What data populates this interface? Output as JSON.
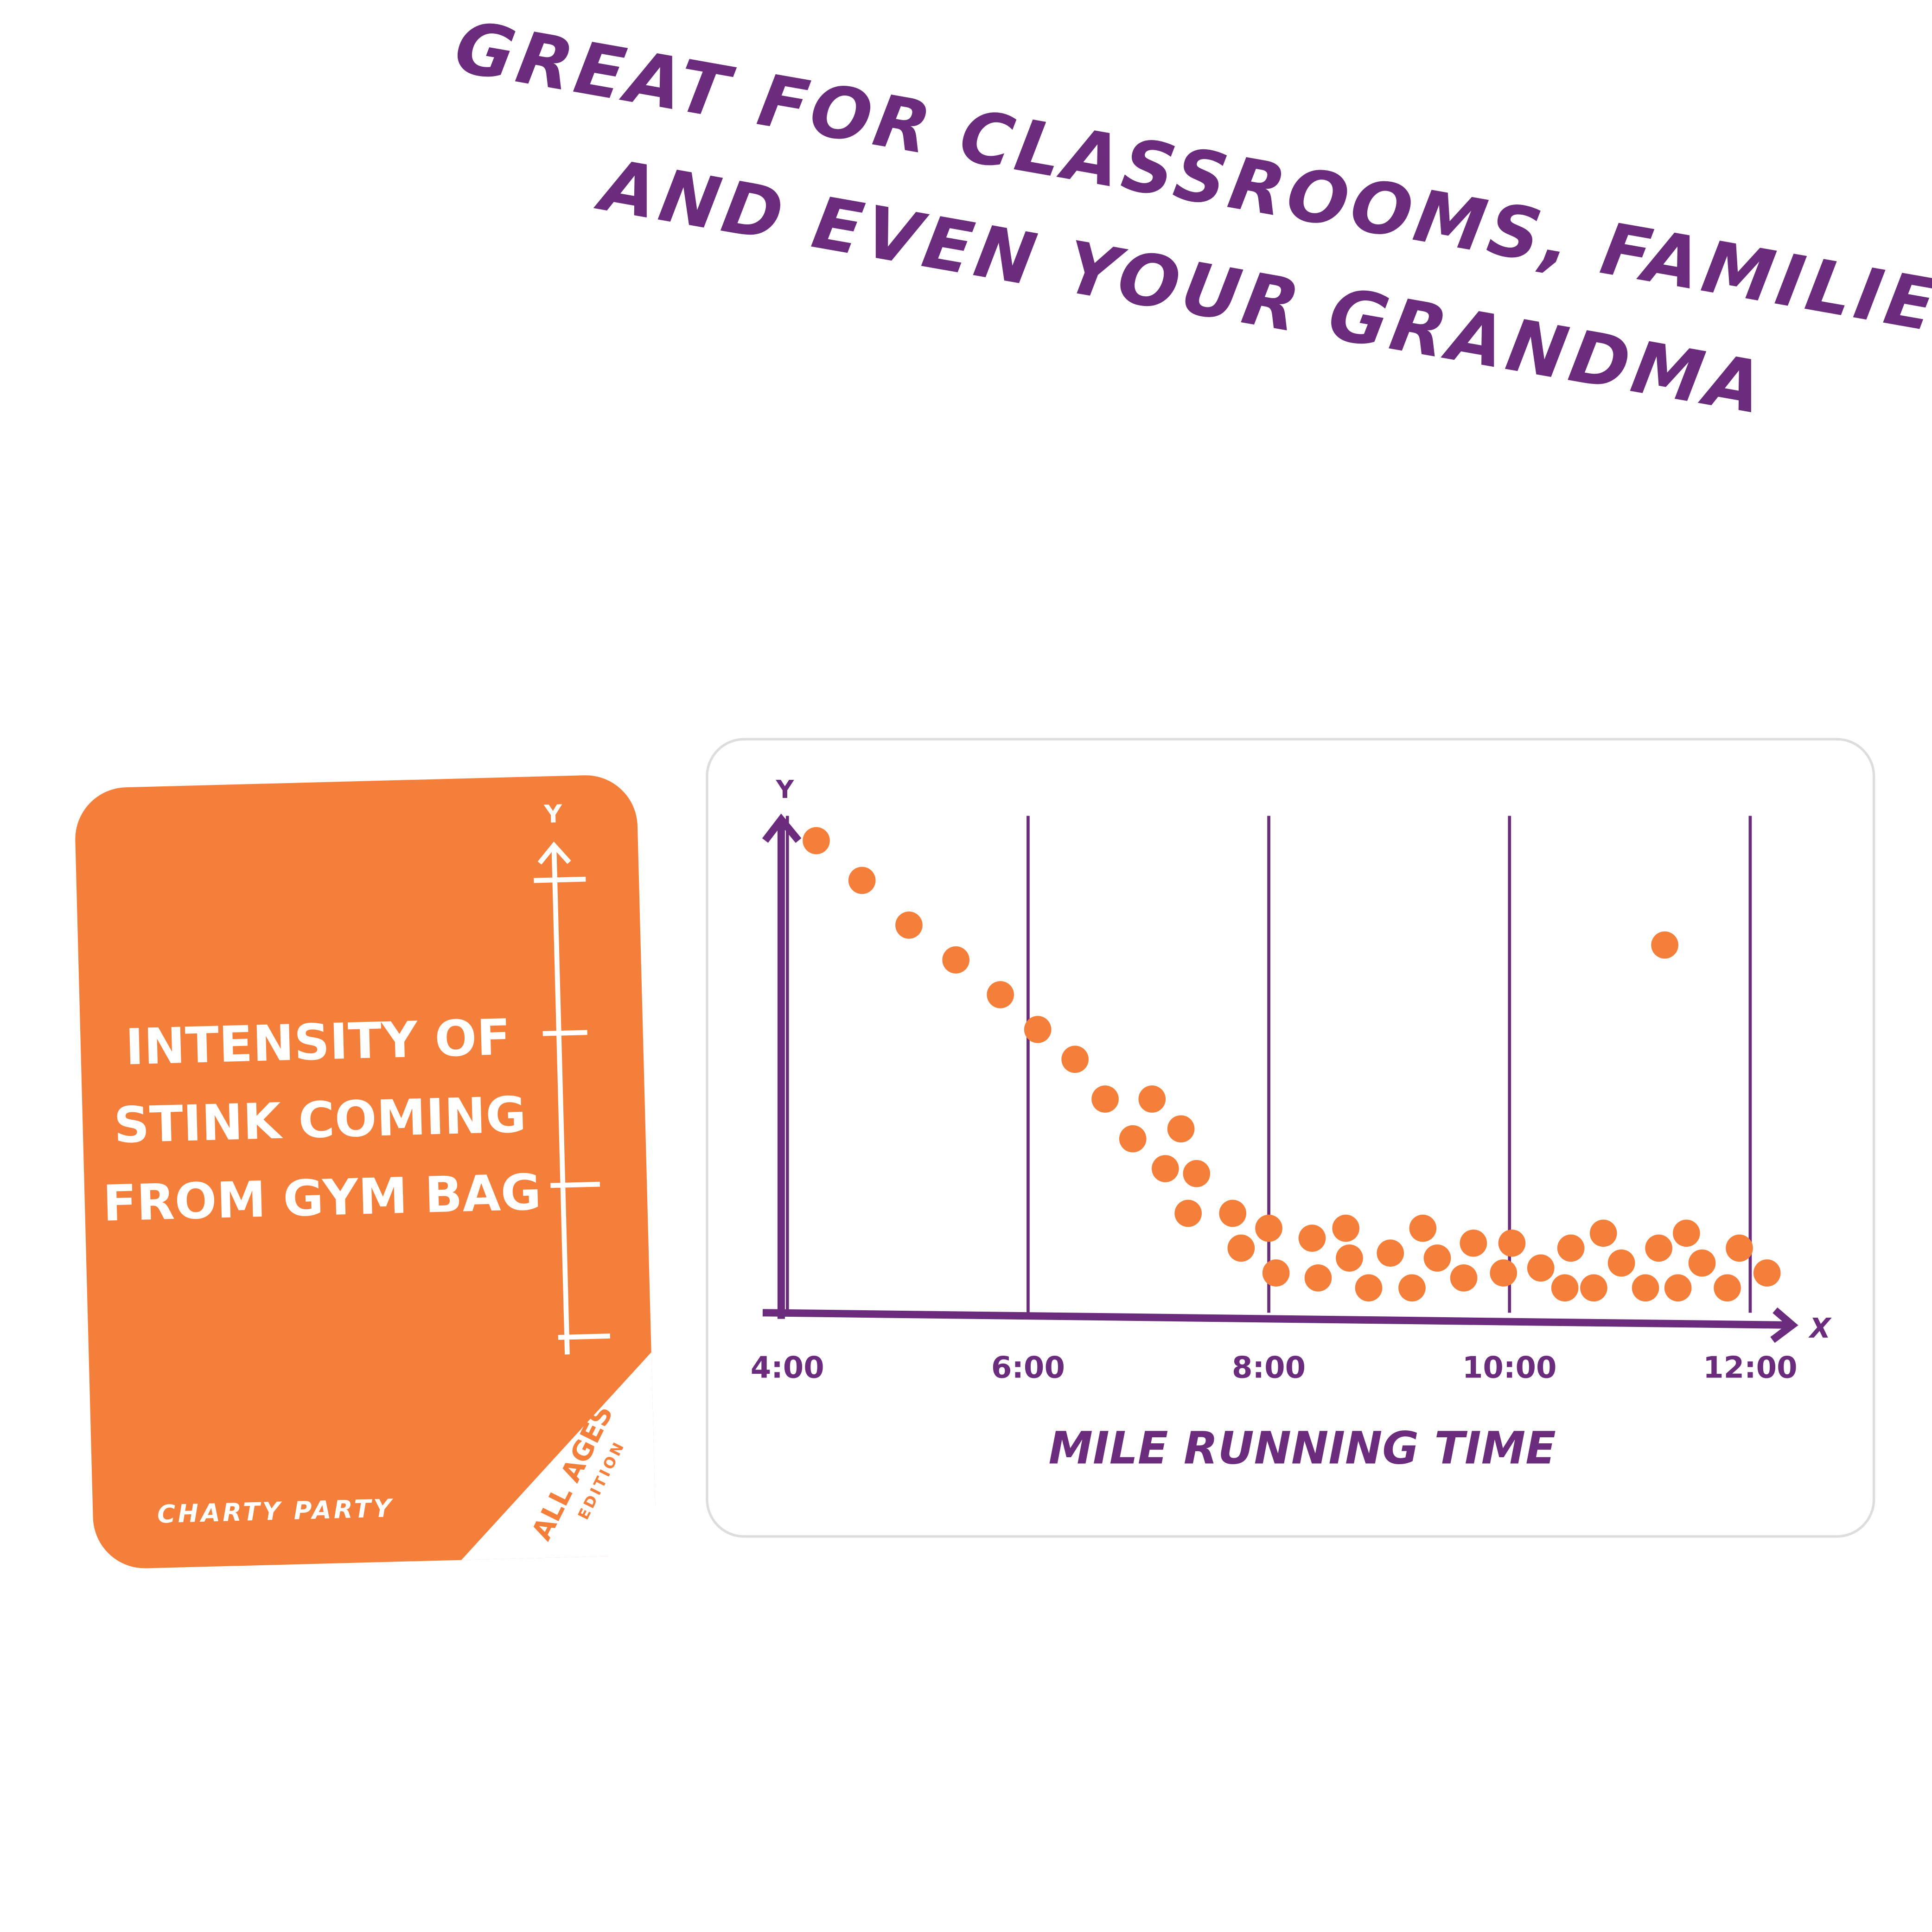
{
  "headline": {
    "line1": "GREAT FOR CLASSROOMS, FAMILIES,",
    "line2": "AND EVEN YOUR GRANDMA"
  },
  "card": {
    "axis_letter": "Y",
    "prompt_lines": [
      "INTENSITY OF",
      "STINK COMING",
      "FROM GYM BAG"
    ],
    "brand": "CHARTY PARTY",
    "edition": "ALL AGES",
    "edition_sub": "EDITION"
  },
  "chart_data": {
    "type": "scatter",
    "xlabel": "MILE RUNNING TIME",
    "ylabel": "Y",
    "x_axis_letter": "X",
    "color": "#f47f3b",
    "grid": true,
    "xlim": [
      4,
      12.35
    ],
    "ylim": [
      0,
      10
    ],
    "xticks": [
      {
        "value": 4,
        "label": "4:00"
      },
      {
        "value": 6,
        "label": "6:00"
      },
      {
        "value": 8,
        "label": "8:00"
      },
      {
        "value": 10,
        "label": "10:00"
      },
      {
        "value": 12,
        "label": "12:00"
      }
    ],
    "x": [
      4.24,
      4.62,
      5.01,
      5.4,
      5.77,
      6.08,
      6.39,
      6.64,
      7.03,
      6.87,
      7.27,
      7.14,
      7.4,
      7.33,
      7.7,
      7.77,
      8.0,
      8.06,
      8.36,
      8.41,
      8.64,
      8.67,
      8.83,
      9.01,
      9.19,
      9.28,
      9.4,
      9.62,
      9.7,
      9.95,
      10.02,
      10.26,
      10.46,
      10.51,
      10.7,
      10.78,
      10.93,
      11.13,
      11.24,
      11.4,
      11.47,
      11.6,
      11.81,
      11.91,
      12.14,
      11.29
    ],
    "values": [
      9.5,
      8.7,
      7.8,
      7.1,
      6.4,
      5.7,
      5.1,
      4.3,
      4.3,
      3.5,
      3.7,
      2.9,
      2.8,
      2.0,
      2.0,
      1.3,
      1.7,
      0.8,
      1.5,
      0.7,
      1.7,
      1.1,
      0.5,
      1.2,
      0.5,
      1.7,
      1.1,
      0.7,
      1.4,
      0.8,
      1.4,
      0.9,
      0.5,
      1.3,
      0.5,
      1.6,
      1.0,
      0.5,
      1.3,
      0.5,
      1.6,
      1.0,
      0.5,
      1.3,
      0.8,
      7.4
    ]
  }
}
